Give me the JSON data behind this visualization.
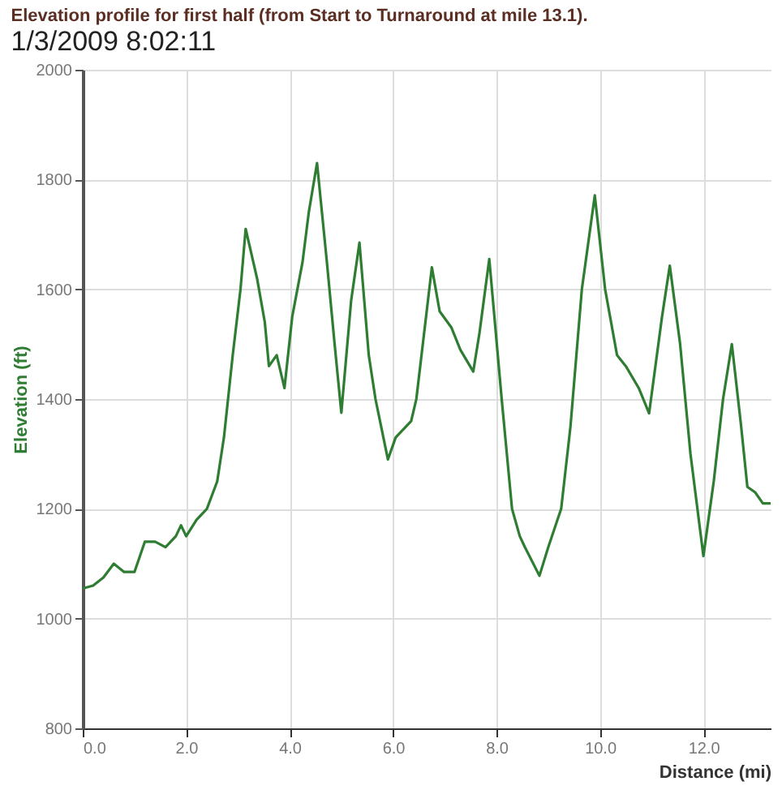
{
  "chart_data": {
    "type": "line",
    "title": "Elevation profile for first half (from Start to Turnaround at mile 13.1).",
    "subtitle": "1/3/2009 8:02:11",
    "xlabel": "Distance (mi)",
    "ylabel": "Elevation (ft)",
    "x": [
      0,
      0.2,
      0.4,
      0.6,
      0.8,
      1.0,
      1.2,
      1.4,
      1.6,
      1.8,
      1.9,
      2.0,
      2.2,
      2.4,
      2.6,
      2.73,
      2.9,
      3.05,
      3.15,
      3.37,
      3.52,
      3.6,
      3.75,
      3.9,
      4.05,
      4.25,
      4.37,
      4.53,
      4.72,
      4.87,
      5.0,
      5.19,
      5.35,
      5.53,
      5.66,
      5.9,
      6.05,
      6.35,
      6.45,
      6.75,
      6.9,
      7.13,
      7.3,
      7.55,
      7.67,
      7.86,
      8.1,
      8.3,
      8.45,
      8.55,
      8.83,
      9.0,
      9.25,
      9.43,
      9.65,
      9.9,
      10.1,
      10.33,
      10.5,
      10.75,
      10.95,
      11.2,
      11.35,
      11.55,
      11.75,
      12.0,
      12.2,
      12.38,
      12.55,
      12.73,
      12.85,
      13.0,
      13.15,
      13.3
    ],
    "series": [
      {
        "color": "#2e7d32",
        "values": [
          1055,
          1060,
          1075,
          1100,
          1085,
          1085,
          1140,
          1140,
          1130,
          1150,
          1170,
          1150,
          1180,
          1200,
          1250,
          1330,
          1480,
          1600,
          1710,
          1620,
          1540,
          1460,
          1480,
          1420,
          1550,
          1650,
          1740,
          1830,
          1650,
          1500,
          1375,
          1580,
          1685,
          1480,
          1400,
          1290,
          1330,
          1360,
          1400,
          1640,
          1560,
          1530,
          1490,
          1450,
          1520,
          1655,
          1400,
          1200,
          1150,
          1130,
          1078,
          1130,
          1200,
          1350,
          1600,
          1771,
          1600,
          1480,
          1460,
          1420,
          1374,
          1550,
          1643,
          1500,
          1300,
          1114,
          1250,
          1400,
          1500,
          1350,
          1240,
          1230,
          1210,
          1210
        ]
      }
    ],
    "xlim": [
      0,
      13.3
    ],
    "ylim": [
      800,
      2000
    ],
    "xticks": [
      {
        "value": 0,
        "label": "0.0"
      },
      {
        "value": 2,
        "label": "2.0"
      },
      {
        "value": 4,
        "label": "4.0"
      },
      {
        "value": 6,
        "label": "6.0"
      },
      {
        "value": 8,
        "label": "8.0"
      },
      {
        "value": 10,
        "label": "10.0"
      },
      {
        "value": 12,
        "label": "12.0"
      }
    ],
    "yticks": [
      800,
      1000,
      1200,
      1400,
      1600,
      1800,
      2000
    ],
    "grid": true,
    "line_style": "solid"
  }
}
